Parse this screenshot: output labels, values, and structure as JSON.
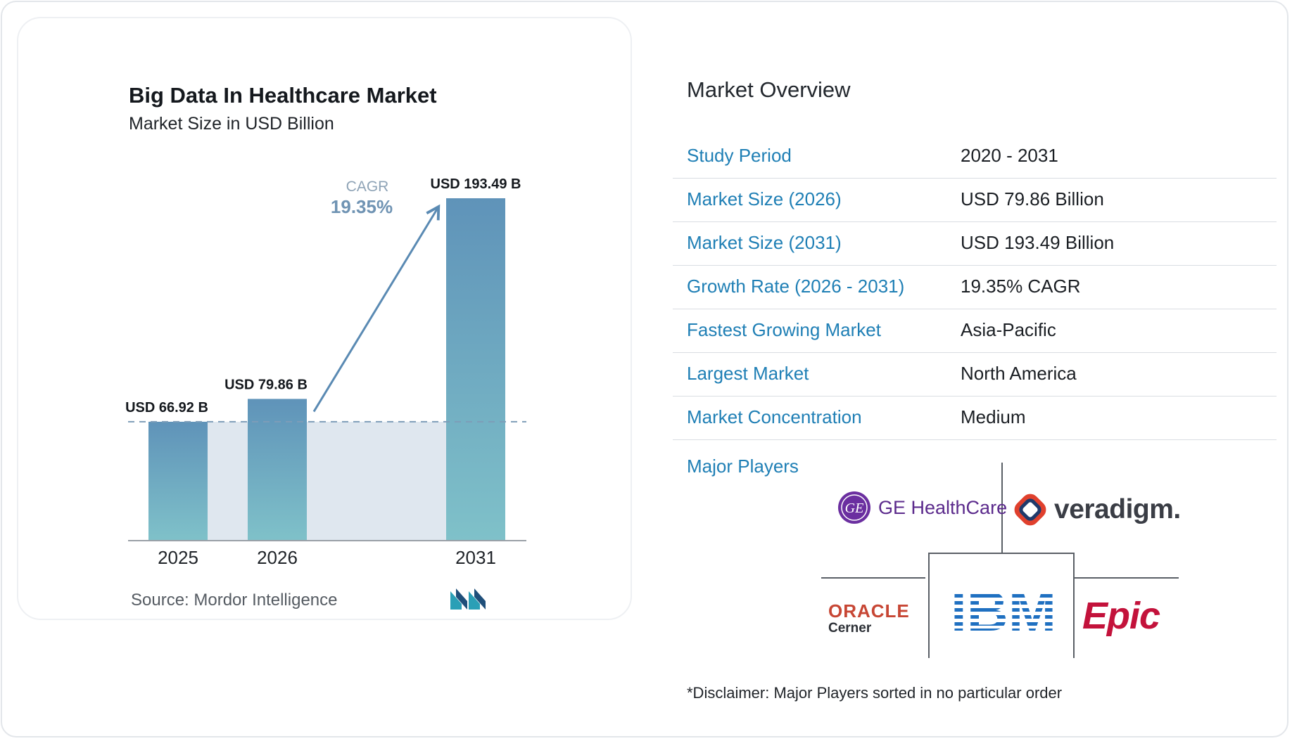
{
  "chart_data": {
    "type": "bar",
    "title": "Big Data In Healthcare Market",
    "subtitle": "Market Size in USD Billion",
    "categories": [
      "2025",
      "2026",
      "2031"
    ],
    "values": [
      66.92,
      79.86,
      193.49
    ],
    "value_labels": [
      "USD 66.92 B",
      "USD 79.86 B",
      "USD 193.49 B"
    ],
    "cagr_label": "CAGR",
    "cagr_value": "19.35%",
    "ylim": [
      0,
      193.49
    ],
    "grid": false,
    "colors": {
      "bar_top": "#5f93b9",
      "bar_bottom": "#7fc1c9",
      "band": "#dfe7ef",
      "arrow": "#5a8ab3",
      "cagr_label": "#8ea3b6",
      "cagr_value": "#6f93b3"
    }
  },
  "source": "Source: Mordor Intelligence",
  "logo_icon": "mordor-intelligence-logo",
  "overview": {
    "title": "Market Overview",
    "rows": [
      {
        "label": "Study Period",
        "value": "2020 - 2031"
      },
      {
        "label": "Market Size (2026)",
        "value": "USD 79.86 Billion"
      },
      {
        "label": "Market Size (2031)",
        "value": "USD 193.49 Billion"
      },
      {
        "label": "Growth Rate (2026 - 2031)",
        "value": "19.35% CAGR"
      },
      {
        "label": "Fastest Growing Market",
        "value": "Asia-Pacific"
      },
      {
        "label": "Largest Market",
        "value": "North America"
      },
      {
        "label": "Market Concentration",
        "value": "Medium"
      }
    ]
  },
  "players": {
    "label": "Major Players",
    "logos": {
      "ge": "GE HealthCare",
      "veradigm": "veradigm.",
      "oracle": "ORACLE",
      "cerner": "Cerner",
      "ibm": "IBM",
      "epic": "Epic"
    }
  },
  "disclaimer": "*Disclaimer: Major Players sorted in no particular order"
}
